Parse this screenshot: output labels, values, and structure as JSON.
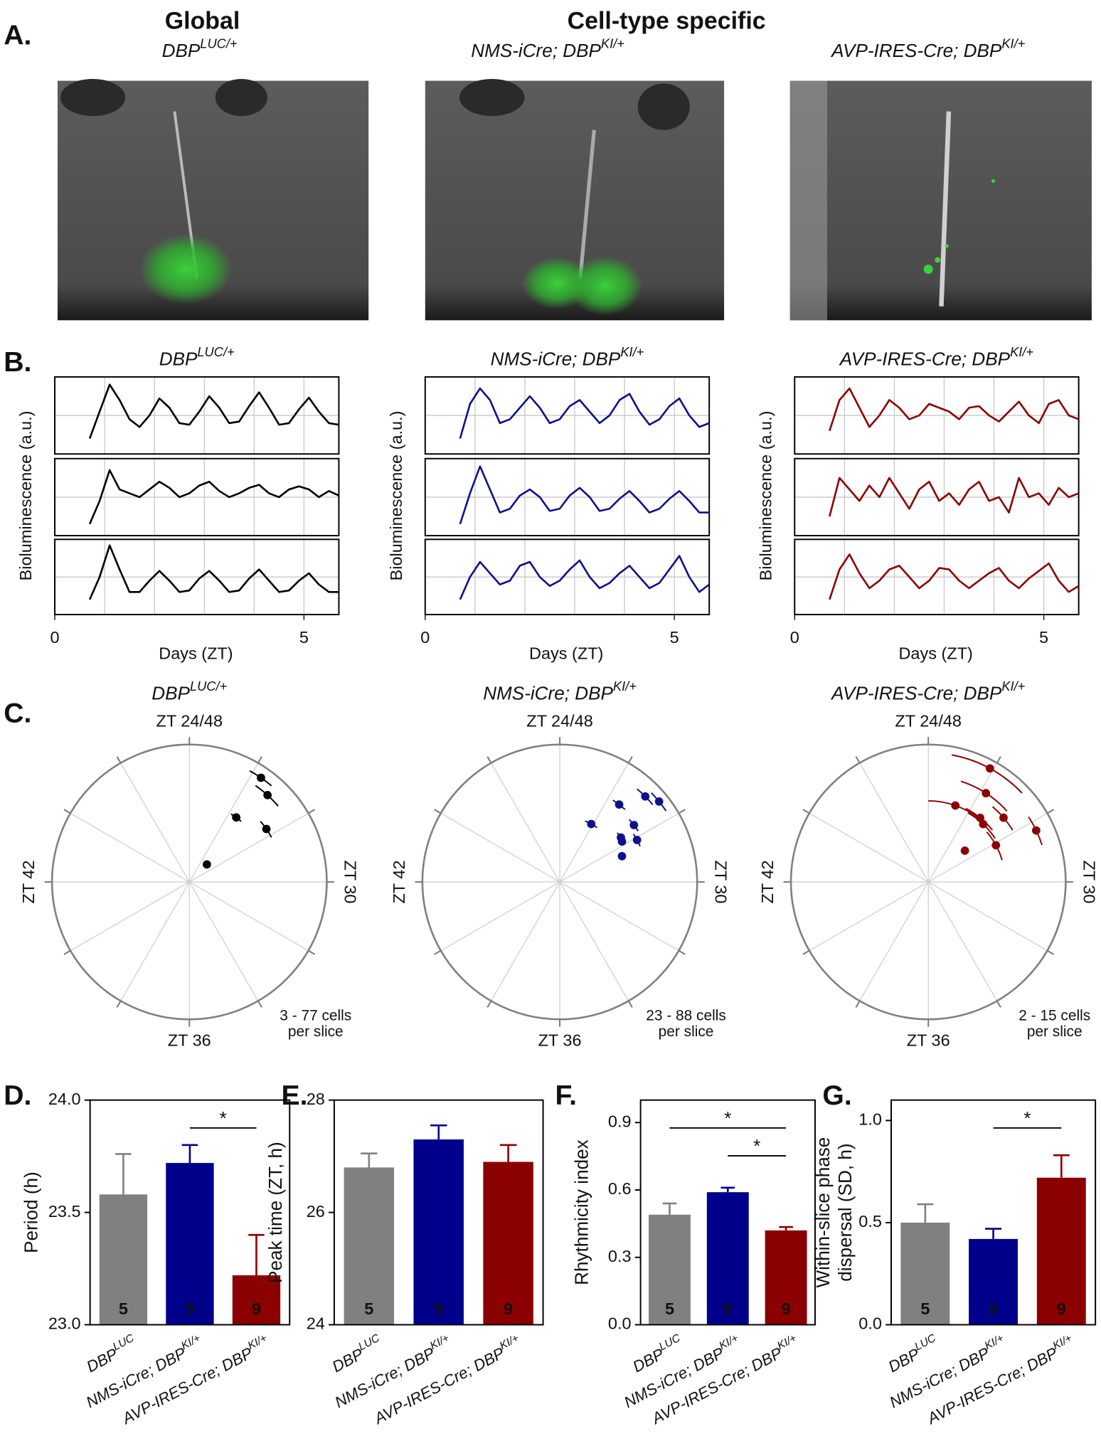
{
  "panel_labels": [
    "A.",
    "B.",
    "C.",
    "D.",
    "E.",
    "F.",
    "G."
  ],
  "panel_a": {
    "group_titles": [
      "Global",
      "Cell-type specific"
    ],
    "genotypes": [
      {
        "text": "DBP",
        "sup": "LUC/+"
      },
      {
        "text": "NMS-iCre; DBP",
        "sup": "KI/+"
      },
      {
        "text": "AVP-IRES-Cre; DBP",
        "sup": "KI/+"
      }
    ]
  },
  "chart_data": [
    {
      "type": "line",
      "title": {
        "text": "DBP",
        "sup": "LUC/+"
      },
      "xlabel": "Days (ZT)",
      "ylabel": "Bioluminescence (a.u.)",
      "xlim": [
        0,
        5.7
      ],
      "xticks": [
        0,
        5
      ],
      "xminor": [
        1,
        2,
        3,
        4
      ],
      "ylim": [
        0,
        1
      ],
      "ygrid": [
        0.5
      ],
      "grid": true,
      "x": [
        0.7,
        0.9,
        1.1,
        1.3,
        1.5,
        1.7,
        1.9,
        2.1,
        2.3,
        2.5,
        2.7,
        2.9,
        3.1,
        3.3,
        3.5,
        3.7,
        3.9,
        4.1,
        4.3,
        4.5,
        4.7,
        4.9,
        5.1,
        5.3,
        5.5,
        5.7
      ],
      "series": [
        {
          "color": "#000000",
          "values": [
            0.2,
            0.55,
            0.9,
            0.7,
            0.45,
            0.35,
            0.5,
            0.72,
            0.6,
            0.4,
            0.38,
            0.55,
            0.75,
            0.6,
            0.4,
            0.42,
            0.62,
            0.8,
            0.6,
            0.38,
            0.4,
            0.58,
            0.73,
            0.55,
            0.4,
            0.38
          ]
        },
        {
          "color": "#000000",
          "values": [
            0.15,
            0.45,
            0.85,
            0.6,
            0.55,
            0.5,
            0.6,
            0.7,
            0.62,
            0.5,
            0.55,
            0.65,
            0.7,
            0.58,
            0.5,
            0.55,
            0.62,
            0.66,
            0.55,
            0.5,
            0.6,
            0.64,
            0.6,
            0.5,
            0.58,
            0.52
          ]
        },
        {
          "color": "#000000",
          "values": [
            0.2,
            0.5,
            0.92,
            0.6,
            0.3,
            0.3,
            0.45,
            0.58,
            0.45,
            0.3,
            0.32,
            0.48,
            0.58,
            0.45,
            0.3,
            0.32,
            0.48,
            0.6,
            0.45,
            0.3,
            0.32,
            0.45,
            0.55,
            0.4,
            0.3,
            0.3
          ]
        }
      ]
    },
    {
      "type": "line",
      "title": {
        "text": "NMS-iCre; DBP",
        "sup": "KI/+"
      },
      "xlabel": "Days (ZT)",
      "ylabel": "Bioluminescence (a.u.)",
      "xlim": [
        0,
        5.7
      ],
      "xticks": [
        0,
        5
      ],
      "xminor": [
        1,
        2,
        3,
        4
      ],
      "ylim": [
        0,
        1
      ],
      "ygrid": [
        0.5
      ],
      "grid": true,
      "x": [
        0.7,
        0.9,
        1.1,
        1.3,
        1.5,
        1.7,
        1.9,
        2.1,
        2.3,
        2.5,
        2.7,
        2.9,
        3.1,
        3.3,
        3.5,
        3.7,
        3.9,
        4.1,
        4.3,
        4.5,
        4.7,
        4.9,
        5.1,
        5.3,
        5.5,
        5.7
      ],
      "series": [
        {
          "color": "#10108a",
          "values": [
            0.2,
            0.65,
            0.85,
            0.7,
            0.4,
            0.45,
            0.6,
            0.75,
            0.6,
            0.4,
            0.45,
            0.62,
            0.7,
            0.55,
            0.4,
            0.5,
            0.7,
            0.78,
            0.55,
            0.38,
            0.45,
            0.62,
            0.72,
            0.5,
            0.35,
            0.4
          ]
        },
        {
          "color": "#10108a",
          "values": [
            0.15,
            0.55,
            0.9,
            0.6,
            0.3,
            0.35,
            0.52,
            0.6,
            0.5,
            0.32,
            0.35,
            0.52,
            0.62,
            0.5,
            0.32,
            0.35,
            0.48,
            0.58,
            0.45,
            0.3,
            0.35,
            0.48,
            0.58,
            0.45,
            0.3,
            0.3
          ]
        },
        {
          "color": "#10108a",
          "values": [
            0.2,
            0.5,
            0.7,
            0.55,
            0.4,
            0.45,
            0.65,
            0.7,
            0.5,
            0.38,
            0.45,
            0.6,
            0.72,
            0.5,
            0.35,
            0.42,
            0.55,
            0.65,
            0.5,
            0.35,
            0.42,
            0.6,
            0.78,
            0.5,
            0.3,
            0.4
          ]
        }
      ]
    },
    {
      "type": "line",
      "title": {
        "text": "AVP-IRES-Cre; DBP",
        "sup": "KI/+"
      },
      "xlabel": "Days (ZT)",
      "ylabel": "Bioluminescence (a.u.)",
      "xlim": [
        0,
        5.7
      ],
      "xticks": [
        0,
        5
      ],
      "xminor": [
        1,
        2,
        3,
        4
      ],
      "ylim": [
        0,
        1
      ],
      "ygrid": [
        0.5
      ],
      "grid": true,
      "x": [
        0.7,
        0.9,
        1.1,
        1.3,
        1.5,
        1.7,
        1.9,
        2.1,
        2.3,
        2.5,
        2.7,
        2.9,
        3.1,
        3.3,
        3.5,
        3.7,
        3.9,
        4.1,
        4.3,
        4.5,
        4.7,
        4.9,
        5.1,
        5.3,
        5.5,
        5.7
      ],
      "series": [
        {
          "color": "#8b0000",
          "values": [
            0.3,
            0.7,
            0.85,
            0.6,
            0.35,
            0.5,
            0.7,
            0.6,
            0.45,
            0.5,
            0.65,
            0.6,
            0.55,
            0.45,
            0.6,
            0.62,
            0.5,
            0.42,
            0.55,
            0.68,
            0.5,
            0.4,
            0.65,
            0.7,
            0.5,
            0.45
          ]
        },
        {
          "color": "#8b0000",
          "values": [
            0.25,
            0.75,
            0.6,
            0.45,
            0.65,
            0.5,
            0.75,
            0.55,
            0.35,
            0.6,
            0.7,
            0.45,
            0.55,
            0.4,
            0.6,
            0.7,
            0.45,
            0.5,
            0.3,
            0.75,
            0.5,
            0.55,
            0.4,
            0.62,
            0.5,
            0.55
          ]
        },
        {
          "color": "#8b0000",
          "values": [
            0.2,
            0.6,
            0.8,
            0.55,
            0.35,
            0.45,
            0.6,
            0.65,
            0.5,
            0.35,
            0.45,
            0.62,
            0.6,
            0.45,
            0.35,
            0.45,
            0.55,
            0.62,
            0.45,
            0.35,
            0.48,
            0.58,
            0.68,
            0.45,
            0.3,
            0.38
          ]
        }
      ]
    },
    {
      "type": "polar",
      "title": {
        "text": "DBP",
        "sup": "LUC/+"
      },
      "thetalim": [
        24,
        48
      ],
      "rlim": [
        0,
        1
      ],
      "theta_ticks": [
        {
          "value": 24,
          "label": "ZT 24/48"
        },
        {
          "value": 30,
          "label": "ZT 30"
        },
        {
          "value": 36,
          "label": "ZT 36"
        },
        {
          "value": 42,
          "label": "ZT 42"
        }
      ],
      "annotation": [
        "3 - 77 cells",
        "per slice"
      ],
      "series": [
        {
          "color": "#000000",
          "phase": [
            26.3,
            26.8,
            26.4,
            27.7,
            27.0
          ],
          "radius": [
            0.92,
            0.85,
            0.58,
            0.68,
            0.18
          ],
          "phase_error": [
            0.4,
            0.5,
            0.3,
            0.4,
            null
          ]
        }
      ]
    },
    {
      "type": "polar",
      "title": {
        "text": "NMS-iCre; DBP",
        "sup": "KI/+"
      },
      "thetalim": [
        24,
        48
      ],
      "rlim": [
        0,
        1
      ],
      "theta_ticks": [
        {
          "value": 24,
          "label": "ZT 24/48"
        },
        {
          "value": 30,
          "label": "ZT 30"
        },
        {
          "value": 36,
          "label": "ZT 36"
        },
        {
          "value": 42,
          "label": "ZT 42"
        }
      ],
      "annotation": [
        "23 - 88 cells",
        "per slice"
      ],
      "series": [
        {
          "color": "#10108a",
          "phase": [
            27.4,
            27.0,
            26.5,
            25.9,
            27.5,
            27.6,
            28.1,
            27.8,
            28.5
          ],
          "radius": [
            0.93,
            0.88,
            0.71,
            0.48,
            0.68,
            0.55,
            0.64,
            0.54,
            0.49
          ],
          "phase_error": [
            0.35,
            0.35,
            0.3,
            0.4,
            0.3,
            0.3,
            0.3,
            null,
            null
          ]
        }
      ]
    },
    {
      "type": "polar",
      "title": {
        "text": "AVP-IRES-Cre; DBP",
        "sup": "KI/+"
      },
      "thetalim": [
        24,
        48
      ],
      "rlim": [
        0,
        1
      ],
      "theta_ticks": [
        {
          "value": 24,
          "label": "ZT 24/48"
        },
        {
          "value": 30,
          "label": "ZT 30"
        },
        {
          "value": 36,
          "label": "ZT 36"
        },
        {
          "value": 42,
          "label": "ZT 42"
        }
      ],
      "annotation": [
        "2 - 15 cells",
        "per slice"
      ],
      "series": [
        {
          "color": "#8b0000",
          "phase": [
            25.9,
            26.2,
            25.3,
            26.6,
            27.3,
            28.3,
            28.1,
            27.3,
            26.9
          ],
          "radius": [
            0.94,
            0.77,
            0.59,
            0.6,
            0.72,
            0.87,
            0.56,
            0.35,
            0.58
          ],
          "phase_error": [
            1.2,
            1.0,
            1.3,
            0.8,
            0.6,
            0.5,
            0.8,
            null,
            0.9
          ]
        }
      ]
    },
    {
      "type": "bar",
      "ylabel": "Period (h)",
      "ylim": [
        23.0,
        24.0
      ],
      "yticks": [
        {
          "value": 23.0,
          "label": "23.0"
        },
        23.5,
        {
          "value": 24.0,
          "label": "24.0"
        }
      ],
      "categories": [
        {
          "text": "DBP",
          "sup": "LUC"
        },
        {
          "text": "NMS-iCre; DBP",
          "sup": "KI/+"
        },
        {
          "text": "AVP-IRES-Cre; DBP",
          "sup": "KI/+"
        }
      ],
      "colors": [
        "#808080",
        "#00008b",
        "#8b0000"
      ],
      "values": [
        23.58,
        23.72,
        23.22
      ],
      "errors": [
        0.18,
        0.08,
        0.18
      ],
      "n": [
        5,
        9,
        9
      ],
      "significance": [
        {
          "between": [
            1,
            2
          ],
          "label": "*"
        }
      ]
    },
    {
      "type": "bar",
      "ylabel": "Peak time (ZT, h)",
      "ylim": [
        24,
        28
      ],
      "yticks": [
        24,
        26,
        28
      ],
      "categories": [
        {
          "text": "DBP",
          "sup": "LUC"
        },
        {
          "text": "NMS-iCre; DBP",
          "sup": "KI/+"
        },
        {
          "text": "AVP-IRES-Cre; DBP",
          "sup": "KI/+"
        }
      ],
      "colors": [
        "#808080",
        "#00008b",
        "#8b0000"
      ],
      "values": [
        26.8,
        27.3,
        26.9
      ],
      "errors": [
        0.25,
        0.25,
        0.3
      ],
      "n": [
        5,
        9,
        9
      ],
      "significance": []
    },
    {
      "type": "bar",
      "ylabel": "Rhythmicity index",
      "ylim": [
        0,
        1.0
      ],
      "yticks": [
        {
          "value": 0.0,
          "label": "0.0"
        },
        0.3,
        0.6,
        0.9
      ],
      "categories": [
        {
          "text": "DBP",
          "sup": "LUC"
        },
        {
          "text": "NMS-iCre; DBP",
          "sup": "KI/+"
        },
        {
          "text": "AVP-IRES-Cre; DBP",
          "sup": "KI/+"
        }
      ],
      "colors": [
        "#808080",
        "#00008b",
        "#8b0000"
      ],
      "values": [
        0.49,
        0.59,
        0.42
      ],
      "errors": [
        0.05,
        0.02,
        0.015
      ],
      "n": [
        5,
        9,
        9
      ],
      "significance": [
        {
          "between": [
            0,
            2
          ],
          "label": "*"
        },
        {
          "between": [
            1,
            2
          ],
          "label": "*"
        }
      ]
    },
    {
      "type": "bar",
      "ylabel": [
        "Within-slice phase",
        "dispersal (SD, h)"
      ],
      "ylim": [
        0,
        1.1
      ],
      "yticks": [
        {
          "value": 0.0,
          "label": "0.0"
        },
        0.5,
        {
          "value": 1.0,
          "label": "1.0"
        }
      ],
      "categories": [
        {
          "text": "DBP",
          "sup": "LUC"
        },
        {
          "text": "NMS-iCre; DBP",
          "sup": "KI/+"
        },
        {
          "text": "AVP-IRES-Cre; DBP",
          "sup": "KI/+"
        }
      ],
      "colors": [
        "#808080",
        "#00008b",
        "#8b0000"
      ],
      "values": [
        0.5,
        0.42,
        0.72
      ],
      "errors": [
        0.09,
        0.05,
        0.11
      ],
      "n": [
        5,
        9,
        9
      ],
      "significance": [
        {
          "between": [
            1,
            2
          ],
          "label": "*"
        }
      ]
    }
  ]
}
